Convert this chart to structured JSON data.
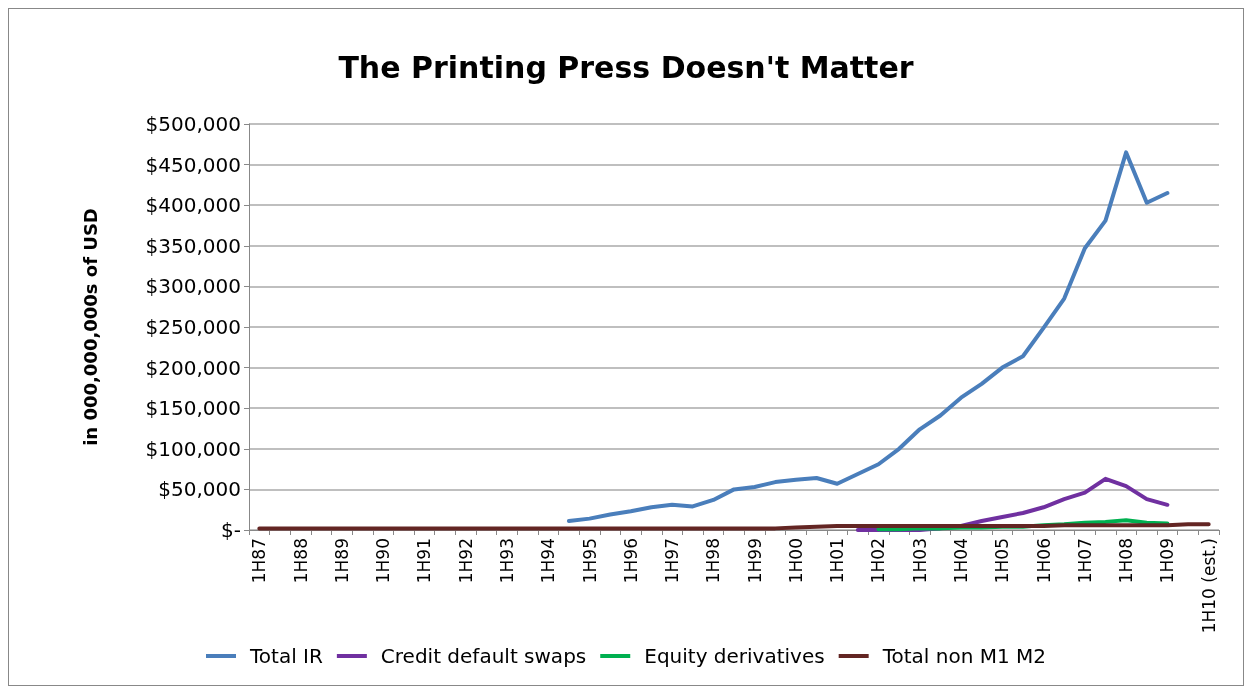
{
  "chart_data": {
    "type": "line",
    "title": "The Printing Press Doesn't Matter",
    "ylabel": "in 000,000,000s of USD",
    "categories": [
      "1H87",
      null,
      "1H88",
      null,
      "1H89",
      null,
      "1H90",
      null,
      "1H91",
      null,
      "1H92",
      null,
      "1H93",
      null,
      "1H94",
      null,
      "1H95",
      null,
      "1H96",
      null,
      "1H97",
      null,
      "1H98",
      null,
      "1H99",
      null,
      "1H00",
      null,
      "1H01",
      null,
      "1H02",
      null,
      "1H03",
      null,
      "1H04",
      null,
      "1H05",
      null,
      "1H06",
      null,
      "1H07",
      null,
      "1H08",
      null,
      "1H09",
      null,
      "1H10 (est.)"
    ],
    "series": [
      {
        "name": "Total IR",
        "color": "#4a7ebb",
        "values": [
          null,
          null,
          null,
          null,
          null,
          null,
          null,
          null,
          null,
          null,
          null,
          null,
          null,
          null,
          null,
          11000,
          14000,
          19000,
          23000,
          28000,
          31000,
          29000,
          37000,
          50000,
          53000,
          59000,
          62000,
          64000,
          57000,
          69000,
          81000,
          100000,
          124000,
          141000,
          163000,
          180000,
          200000,
          214000,
          249000,
          285000,
          347000,
          381000,
          465000,
          403000,
          415000,
          null,
          null
        ]
      },
      {
        "name": "Credit default swaps",
        "color": "#7030a0",
        "values": [
          null,
          null,
          null,
          null,
          null,
          null,
          null,
          null,
          null,
          null,
          null,
          null,
          null,
          null,
          null,
          null,
          null,
          null,
          null,
          null,
          null,
          null,
          null,
          null,
          null,
          null,
          null,
          null,
          null,
          0,
          0,
          0,
          0,
          2000,
          5000,
          11000,
          16000,
          21000,
          28000,
          38000,
          46000,
          63000,
          54000,
          38000,
          31000,
          null,
          null
        ]
      },
      {
        "name": "Equity derivatives",
        "color": "#00b050",
        "values": [
          null,
          null,
          null,
          null,
          null,
          null,
          null,
          null,
          null,
          null,
          null,
          null,
          null,
          null,
          null,
          null,
          null,
          null,
          null,
          null,
          null,
          null,
          null,
          null,
          null,
          null,
          null,
          null,
          null,
          null,
          1000,
          1000,
          2000,
          2000,
          3000,
          3000,
          4000,
          4000,
          6000,
          7000,
          9000,
          10000,
          12000,
          9000,
          8000,
          null,
          null
        ]
      },
      {
        "name": "Total non M1 M2",
        "color": "#632523",
        "values": [
          2000,
          2000,
          2000,
          2000,
          2000,
          2000,
          2000,
          2000,
          2000,
          2000,
          2000,
          2000,
          2000,
          2000,
          2000,
          2000,
          2000,
          2000,
          2000,
          2000,
          2000,
          2000,
          2000,
          2000,
          2000,
          2000,
          3000,
          4000,
          5000,
          5000,
          5000,
          5000,
          5000,
          5000,
          5000,
          5000,
          5000,
          5000,
          5000,
          6000,
          6000,
          6000,
          6000,
          6000,
          6000,
          7000,
          7000
        ]
      }
    ],
    "ylim": [
      0,
      500000
    ],
    "yticks": [
      {
        "value": 0,
        "label": "$-"
      },
      {
        "value": 50000,
        "label": "$50,000"
      },
      {
        "value": 100000,
        "label": "$100,000"
      },
      {
        "value": 150000,
        "label": "$150,000"
      },
      {
        "value": 200000,
        "label": "$200,000"
      },
      {
        "value": 250000,
        "label": "$250,000"
      },
      {
        "value": 300000,
        "label": "$300,000"
      },
      {
        "value": 350000,
        "label": "$350,000"
      },
      {
        "value": 400000,
        "label": "$400,000"
      },
      {
        "value": 450000,
        "label": "$450,000"
      },
      {
        "value": 500000,
        "label": "$500,000"
      }
    ],
    "grid": "y",
    "legend": "bottom",
    "marker": "none",
    "line_style": "solid"
  }
}
